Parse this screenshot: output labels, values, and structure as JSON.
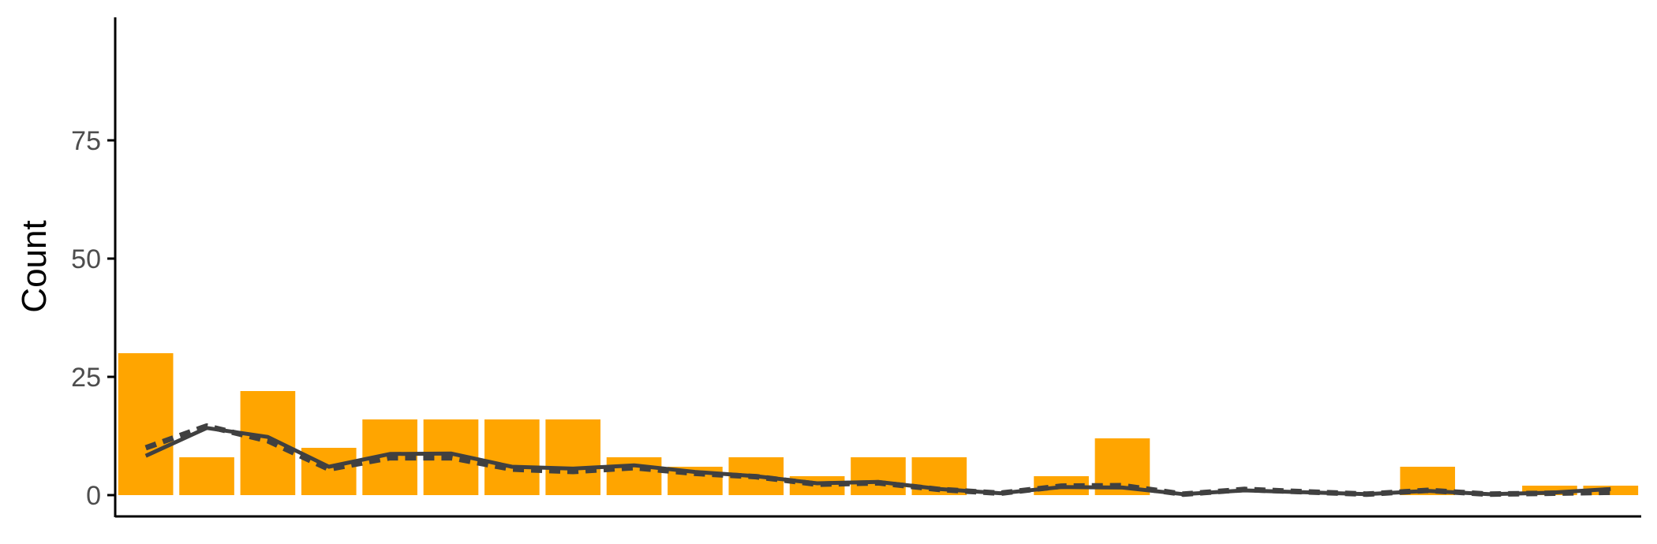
{
  "chart_data": {
    "type": "bar",
    "title": "",
    "xlabel": "",
    "ylabel": "Count",
    "ylim": [
      -4.5,
      101
    ],
    "xlim": [
      0.5,
      25.5
    ],
    "grid": false,
    "y_ticks": [
      0,
      25,
      50,
      75
    ],
    "y_tick_labels": [
      "0",
      "25",
      "50",
      "75"
    ],
    "x": [
      1,
      2,
      3,
      4,
      5,
      6,
      7,
      8,
      9,
      10,
      11,
      12,
      13,
      14,
      15,
      16,
      17,
      18,
      19,
      20,
      21,
      22,
      23,
      24,
      25
    ],
    "values": [
      30,
      8,
      22,
      10,
      16,
      16,
      16,
      16,
      8,
      6,
      8,
      4,
      8,
      8,
      0,
      4,
      12,
      0,
      0,
      0,
      0,
      6,
      0,
      2,
      2
    ],
    "overlay_lines": [
      {
        "style": "solid",
        "x": [
          1,
          2,
          3,
          4,
          5,
          6,
          7,
          8,
          9,
          10,
          11,
          12,
          13,
          14,
          15,
          16,
          17,
          18,
          19,
          20,
          21,
          22,
          23,
          24,
          25
        ],
        "y": [
          8.3,
          14.2,
          12.3,
          6.0,
          8.7,
          8.8,
          6.0,
          5.6,
          6.3,
          4.9,
          4.0,
          2.5,
          2.8,
          1.3,
          0.4,
          1.7,
          1.6,
          0.2,
          1.0,
          0.6,
          0.2,
          0.9,
          0.2,
          0.5,
          1.3
        ]
      },
      {
        "style": "dashed",
        "x": [
          1,
          2,
          3,
          4,
          5,
          6,
          7,
          8,
          9,
          10,
          11,
          12,
          13,
          14,
          15,
          16,
          17,
          18,
          19,
          20,
          21,
          22,
          23,
          24,
          25
        ],
        "y": [
          10.0,
          14.6,
          11.5,
          5.5,
          7.9,
          7.9,
          5.5,
          5.0,
          5.8,
          4.6,
          3.9,
          2.3,
          2.6,
          1.2,
          0.4,
          1.9,
          2.0,
          0.2,
          1.2,
          0.7,
          0.2,
          1.0,
          0.2,
          0.4,
          0.6
        ]
      }
    ]
  },
  "colors": {
    "bar": "#FFA500",
    "line": "#404040",
    "axis": "#000000",
    "tick_label": "#4d4d4d"
  }
}
